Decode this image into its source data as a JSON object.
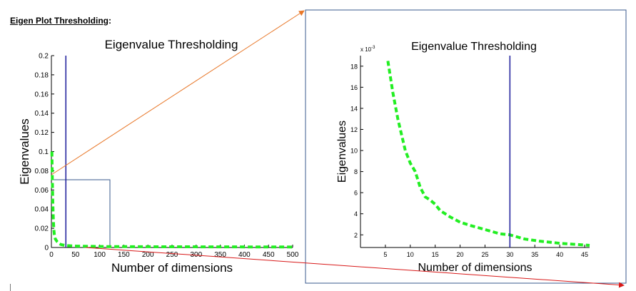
{
  "heading": {
    "title": "Eigen Plot Thresholding",
    "suffix": ":"
  },
  "chart_data": [
    {
      "type": "line",
      "title": "Eigenvalue Thresholding",
      "xlabel": "Number of dimensions",
      "ylabel": "Eigenvalues",
      "xlim": [
        0,
        500
      ],
      "ylim": [
        0,
        0.2
      ],
      "xticks": [
        "0",
        "50",
        "100",
        "150",
        "200",
        "250",
        "300",
        "350",
        "400",
        "450",
        "500"
      ],
      "yticks": [
        "0",
        "0.02",
        "0.04",
        "0.06",
        "0.08",
        "0.1",
        "0.12",
        "0.14",
        "0.16",
        "0.18",
        "0.2"
      ],
      "threshold_x": 30,
      "series_color": "#22ee22",
      "threshold_color": "#1a1a9a",
      "x": [
        1,
        2,
        3,
        4,
        5,
        6,
        8,
        10,
        12,
        15,
        20,
        30,
        50,
        100,
        200,
        300,
        400,
        500
      ],
      "y": [
        0.1,
        0.07,
        0.045,
        0.03,
        0.019,
        0.014,
        0.009,
        0.0075,
        0.006,
        0.0045,
        0.003,
        0.002,
        0.0015,
        0.001,
        0.0008,
        0.0007,
        0.0006,
        0.0005
      ]
    },
    {
      "type": "line",
      "title": "Eigenvalue Thresholding",
      "xlabel": "Number of dimensions",
      "ylabel": "Eigenvalues",
      "y_multiplier": "x 10",
      "y_multiplier_exp": "-3",
      "xlim": [
        0,
        46
      ],
      "ylim": [
        0.8,
        19
      ],
      "xticks": [
        "5",
        "10",
        "15",
        "20",
        "25",
        "30",
        "35",
        "40",
        "45"
      ],
      "yticks": [
        "2",
        "4",
        "6",
        "8",
        "10",
        "12",
        "14",
        "16",
        "18"
      ],
      "threshold_x": 30,
      "series_color": "#22ee22",
      "threshold_color": "#1a1a9a",
      "x": [
        5.5,
        6.5,
        7.5,
        9,
        10,
        11,
        12,
        13,
        14,
        15,
        16,
        17,
        18,
        20,
        22,
        25,
        28,
        30,
        33,
        36,
        40,
        43,
        46
      ],
      "y": [
        18.5,
        15.5,
        13,
        10,
        8.8,
        8,
        6.5,
        5.6,
        5.3,
        4.9,
        4.3,
        4.0,
        3.7,
        3.2,
        2.9,
        2.5,
        2.1,
        2.0,
        1.6,
        1.4,
        1.2,
        1.1,
        1.0
      ]
    }
  ]
}
